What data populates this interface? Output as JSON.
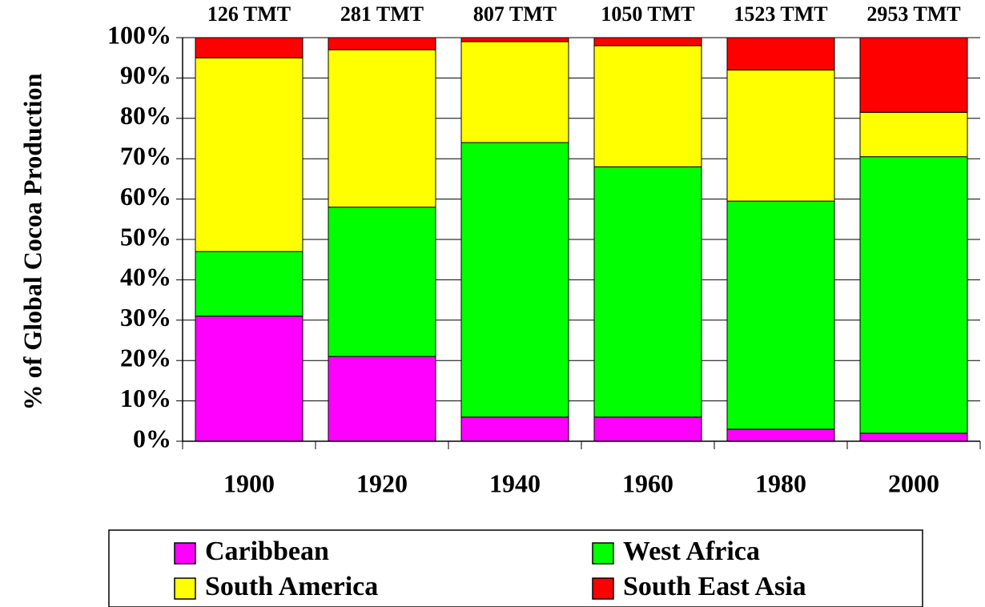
{
  "chart_data": {
    "type": "bar",
    "stacked": true,
    "categories": [
      "1900",
      "1920",
      "1940",
      "1960",
      "1980",
      "2000"
    ],
    "totals": [
      "126 TMT",
      "281 TMT",
      "807 TMT",
      "1050 TMT",
      "1523 TMT",
      "2953 TMT"
    ],
    "series": [
      {
        "name": "Caribbean",
        "color": "#FF00FF",
        "values": [
          31,
          21,
          6,
          6,
          3,
          2
        ]
      },
      {
        "name": "West Africa",
        "color": "#00FF00",
        "values": [
          16,
          37,
          68,
          62,
          56.5,
          68.5
        ]
      },
      {
        "name": "South America",
        "color": "#FFFF00",
        "values": [
          48,
          39,
          25,
          30,
          32.5,
          11
        ]
      },
      {
        "name": "South East Asia",
        "color": "#FF0000",
        "values": [
          5,
          3,
          1,
          2,
          8,
          18.5
        ]
      }
    ],
    "ylabel": "% of Global Cocoa Production",
    "xlabel": "",
    "ylim": [
      0,
      100
    ],
    "yticks": [
      "0%",
      "10%",
      "20%",
      "30%",
      "40%",
      "50%",
      "60%",
      "70%",
      "80%",
      "90%",
      "100%"
    ],
    "grid": "horizontal",
    "legend": {
      "position": "bottom",
      "order": [
        "Caribbean",
        "West Africa",
        "South America",
        "South East Asia"
      ]
    }
  }
}
